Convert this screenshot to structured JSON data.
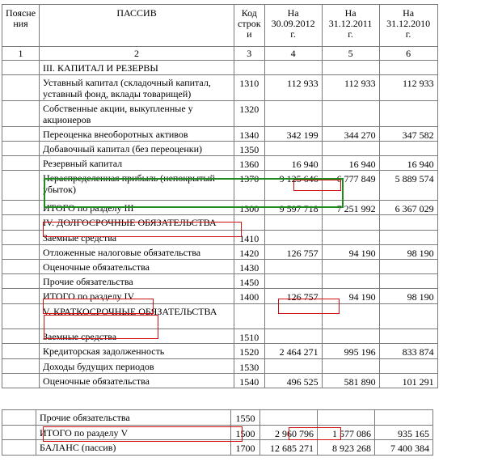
{
  "header": {
    "col1": "Поясне\nния",
    "col2": "ПАССИВ",
    "col3": "Код\nстрок\nи",
    "col4": "На\n30.09.2012 г.",
    "col5": "На\n31.12.2011 г.",
    "col6": "На\n31.12.2010 г."
  },
  "col_numbers": [
    "1",
    "2",
    "3",
    "4",
    "5",
    "6"
  ],
  "rows_main": [
    {
      "label": "III. КАПИТАЛ И РЕЗЕРВЫ",
      "code": "",
      "v1": "",
      "v2": "",
      "v3": ""
    },
    {
      "label": "Уставный капитал (складочный капитал, уставный фонд, вклады товарищей)",
      "code": "1310",
      "v1": "112 933",
      "v2": "112 933",
      "v3": "112 933"
    },
    {
      "label": "Собственные акции, выкупленные у акционеров",
      "code": "1320",
      "v1": "",
      "v2": "",
      "v3": ""
    },
    {
      "label": "Переоценка внеоборотных активов",
      "code": "1340",
      "v1": "342 199",
      "v2": "344 270",
      "v3": "347 582"
    },
    {
      "label": "Добавочный капитал (без переоценки)",
      "code": "1350",
      "v1": "",
      "v2": "",
      "v3": ""
    },
    {
      "label": "Резервный капитал",
      "code": "1360",
      "v1": "16 940",
      "v2": "16 940",
      "v3": "16 940"
    },
    {
      "label": "Нераспределенная прибыль (непокрытый убыток)",
      "code": "1370",
      "v1": "9 125 646",
      "v2": "6 777 849",
      "v3": "5 889 574"
    },
    {
      "label": "ИТОГО по разделу III",
      "code": "1300",
      "v1": "9 597 718",
      "v2": "7 251 992",
      "v3": "6 367 029"
    },
    {
      "label": "IV. ДОЛГОСРОЧНЫЕ ОБЯЗАТЕЛЬСТВА",
      "code": "",
      "v1": "",
      "v2": "",
      "v3": ""
    },
    {
      "label": "Заемные средства",
      "code": "1410",
      "v1": "",
      "v2": "",
      "v3": ""
    },
    {
      "label": "Отложенные налоговые обязательства",
      "code": "1420",
      "v1": "126 757",
      "v2": "94 190",
      "v3": "98 190"
    },
    {
      "label": "Оценочные обязательства",
      "code": "1430",
      "v1": "",
      "v2": "",
      "v3": ""
    },
    {
      "label": "Прочие обязательства",
      "code": "1450",
      "v1": "",
      "v2": "",
      "v3": ""
    },
    {
      "label": "ИТОГО по разделу IV",
      "code": "1400",
      "v1": "126 757",
      "v2": "94 190",
      "v3": "98 190"
    },
    {
      "label": "V. КРАТКОСРОЧНЫЕ ОБЯЗАТЕЛЬСТВА",
      "code": "",
      "v1": "",
      "v2": "",
      "v3": ""
    },
    {
      "label": "Заемные средства",
      "code": "1510",
      "v1": "",
      "v2": "",
      "v3": ""
    },
    {
      "label": "Кредиторская задолженность",
      "code": "1520",
      "v1": "2 464 271",
      "v2": "995 196",
      "v3": "833 874"
    },
    {
      "label": "Доходы будущих периодов",
      "code": "1530",
      "v1": "",
      "v2": "",
      "v3": ""
    },
    {
      "label": "Оценочные обязательства",
      "code": "1540",
      "v1": "496 525",
      "v2": "581 890",
      "v3": "101 291"
    }
  ],
  "rows_extra": [
    {
      "label": "Прочие обязательства",
      "code": "1550",
      "v1": "",
      "v2": "",
      "v3": ""
    },
    {
      "label": "ИТОГО по разделу V",
      "code": "1500",
      "v1": "2 960 796",
      "v2": "1 577 086",
      "v3": "935 165"
    },
    {
      "label": "БАЛАНС (пассив)",
      "code": "1700",
      "v1": "12 685 271",
      "v2": "8 923 268",
      "v3": "7 400 384"
    }
  ],
  "highlight_colors": {
    "green": "#1f8a1f",
    "red": "#d01010"
  }
}
